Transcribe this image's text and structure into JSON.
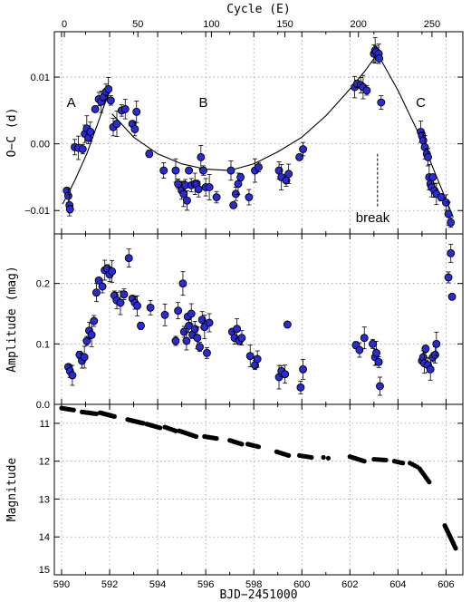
{
  "chart_data": [
    {
      "type": "scatter",
      "panel": "O-C",
      "ylabel": "O−C (d)",
      "x2label": "Cycle (E)",
      "xlim": [
        589.7,
        606.7
      ],
      "ylim": [
        -0.0135,
        0.0168
      ],
      "x2lim": [
        -6.8,
        271.0
      ],
      "xticks": [
        590,
        592,
        594,
        596,
        598,
        600,
        602,
        604,
        606
      ],
      "x2ticks": [
        0,
        50,
        100,
        150,
        200,
        250
      ],
      "yticks": [
        -0.01,
        0.0,
        0.01
      ],
      "ytick_labels": [
        "−0.01",
        "0.00",
        "0.01"
      ],
      "x2tick_labels": [
        "0",
        "50",
        "100",
        "150",
        "200",
        "250"
      ],
      "grid": true,
      "series": [
        {
          "x": [
            590.22,
            590.28,
            590.33,
            590.35,
            590.55,
            590.7,
            590.88,
            590.97,
            591.05,
            591.12,
            591.2,
            591.4,
            591.55,
            591.65,
            591.75,
            591.85,
            591.95,
            592.05,
            592.15,
            592.3,
            592.5,
            592.65,
            592.95,
            593.05,
            593.12,
            593.65,
            594.25,
            594.75,
            594.85,
            595.0,
            595.08,
            595.15,
            595.22,
            595.3,
            595.4,
            595.55,
            595.62,
            595.7,
            595.8,
            595.9,
            596.0,
            596.15,
            596.45,
            597.05,
            597.15,
            597.25,
            597.35,
            597.45,
            597.8,
            598.05,
            598.2,
            599.05,
            599.15,
            599.35,
            599.45,
            599.9,
            600.05,
            602.2,
            602.3,
            602.45,
            602.55,
            602.7,
            603.0,
            603.05,
            603.1,
            603.2,
            603.22,
            603.3,
            604.95,
            605.0,
            605.05,
            605.12,
            605.2,
            605.25,
            605.3,
            605.35,
            605.4,
            605.45,
            605.52,
            605.6,
            605.8,
            606.0,
            606.1,
            606.2
          ],
          "y": [
            -0.007,
            -0.0078,
            -0.0092,
            -0.0098,
            -0.0005,
            -0.0006,
            -0.0008,
            0.0015,
            0.0023,
            0.0009,
            0.0018,
            0.0052,
            0.0067,
            0.0063,
            0.007,
            0.0078,
            0.0082,
            0.0065,
            0.0025,
            0.003,
            0.005,
            0.0052,
            0.003,
            0.0022,
            0.0048,
            -0.0015,
            -0.004,
            -0.004,
            -0.006,
            -0.007,
            -0.0075,
            -0.0062,
            -0.0085,
            -0.004,
            -0.0062,
            -0.006,
            -0.006,
            -0.0068,
            -0.002,
            -0.004,
            -0.0065,
            -0.0065,
            -0.008,
            -0.004,
            -0.0092,
            -0.0075,
            -0.006,
            -0.005,
            -0.008,
            -0.004,
            -0.0035,
            -0.004,
            -0.005,
            -0.0055,
            -0.0045,
            -0.002,
            -0.0008,
            0.0085,
            0.009,
            0.0088,
            0.0085,
            0.008,
            0.0135,
            0.014,
            0.0138,
            0.0135,
            0.0128,
            0.0062,
            0.0018,
            0.0012,
            0.0005,
            -0.0005,
            -0.0015,
            -0.002,
            -0.005,
            -0.006,
            -0.0065,
            -0.005,
            -0.007,
            -0.0075,
            -0.008,
            -0.0088,
            -0.0105,
            -0.0118
          ]
        }
      ],
      "fit_segments": [
        {
          "x": [
            590.05,
            590.55,
            591.05,
            591.55,
            592.05
          ],
          "y": [
            -0.009,
            -0.0055,
            -0.0015,
            0.0035,
            0.0085
          ]
        },
        {
          "x": [
            592.1,
            593.0,
            594.0,
            595.0,
            596.0,
            597.0,
            598.0,
            599.0,
            600.0,
            601.0,
            602.0,
            602.6,
            603.15
          ],
          "y": [
            0.0045,
            0.001,
            -0.0015,
            -0.003,
            -0.0038,
            -0.004,
            -0.003,
            -0.0012,
            0.001,
            0.0042,
            0.0082,
            0.0108,
            0.0135
          ]
        },
        {
          "x": [
            603.15,
            604.0,
            605.0,
            605.5,
            606.3
          ],
          "y": [
            0.0135,
            0.008,
            0.0005,
            -0.004,
            -0.011
          ]
        }
      ],
      "annotations": [
        {
          "text": "A",
          "x": 590.4,
          "y": 0.0055
        },
        {
          "text": "B",
          "x": 595.9,
          "y": 0.0055
        },
        {
          "text": "C",
          "x": 604.95,
          "y": 0.0055
        },
        {
          "text": "break",
          "x": 602.95,
          "y": -0.0117
        }
      ],
      "break_marker": {
        "x": 603.15,
        "y_from": -0.0015,
        "y_to": -0.0095
      }
    },
    {
      "type": "scatter",
      "panel": "Amplitude",
      "ylabel": "Amplitude (mag)",
      "xlim": [
        589.7,
        606.7
      ],
      "ylim": [
        0.0,
        0.282
      ],
      "xticks": [
        590,
        592,
        594,
        596,
        598,
        600,
        602,
        604,
        606
      ],
      "yticks": [
        0.0,
        0.1,
        0.2
      ],
      "ytick_labels": [
        "0.0",
        "0.1",
        "0.2"
      ],
      "grid": true,
      "series": [
        {
          "x": [
            590.28,
            590.35,
            590.45,
            590.75,
            590.85,
            590.95,
            591.05,
            591.15,
            591.25,
            591.35,
            591.45,
            591.55,
            591.7,
            591.8,
            591.9,
            592.0,
            592.1,
            592.2,
            592.3,
            592.45,
            592.6,
            592.8,
            592.95,
            593.05,
            593.15,
            593.3,
            593.7,
            594.3,
            594.75,
            594.85,
            595.05,
            595.1,
            595.2,
            595.25,
            595.3,
            595.4,
            595.45,
            595.55,
            595.65,
            595.75,
            595.85,
            595.95,
            596.05,
            596.15,
            597.1,
            597.2,
            597.3,
            597.4,
            597.5,
            597.85,
            598.05,
            598.15,
            599.05,
            599.15,
            599.3,
            599.4,
            599.95,
            600.05,
            602.25,
            602.4,
            602.6,
            602.95,
            603.05,
            603.1,
            603.2,
            603.25,
            605.0,
            605.05,
            605.1,
            605.15,
            605.25,
            605.35,
            605.45,
            605.55,
            605.6,
            606.1,
            606.2,
            606.25
          ],
          "y": [
            0.062,
            0.055,
            0.048,
            0.082,
            0.072,
            0.078,
            0.105,
            0.122,
            0.115,
            0.138,
            0.185,
            0.205,
            0.195,
            0.222,
            0.225,
            0.215,
            0.22,
            0.18,
            0.172,
            0.168,
            0.182,
            0.242,
            0.175,
            0.168,
            0.163,
            0.13,
            0.16,
            0.148,
            0.105,
            0.155,
            0.2,
            0.12,
            0.105,
            0.145,
            0.13,
            0.15,
            0.115,
            0.125,
            0.11,
            0.095,
            0.14,
            0.128,
            0.085,
            0.135,
            0.12,
            0.11,
            0.125,
            0.105,
            0.11,
            0.08,
            0.065,
            0.075,
            0.045,
            0.055,
            0.05,
            0.132,
            0.028,
            0.058,
            0.098,
            0.09,
            0.11,
            0.1,
            0.078,
            0.085,
            0.07,
            0.03,
            0.072,
            0.078,
            0.068,
            0.092,
            0.065,
            0.058,
            0.078,
            0.082,
            0.1,
            0.21,
            0.25,
            0.178
          ]
        }
      ]
    },
    {
      "type": "scatter",
      "panel": "Magnitude",
      "ylabel": "Magnitude",
      "xlabel": "BJD−2451000",
      "xlim": [
        589.7,
        606.7
      ],
      "ylim": [
        15.0,
        10.5
      ],
      "xticks": [
        590,
        592,
        594,
        596,
        598,
        600,
        602,
        604,
        606
      ],
      "yticks": [
        11,
        12,
        13,
        14,
        15
      ],
      "ytick_labels": [
        "11",
        "12",
        "13",
        "14",
        "15"
      ],
      "grid": true,
      "segments": [
        {
          "x0": 590.0,
          "x1": 590.5,
          "y0": 10.6,
          "y1": 10.65,
          "n": 8
        },
        {
          "x0": 590.85,
          "x1": 591.45,
          "y0": 10.7,
          "y1": 10.75,
          "n": 10
        },
        {
          "x0": 591.6,
          "x1": 592.2,
          "y0": 10.72,
          "y1": 10.82,
          "n": 14
        },
        {
          "x0": 592.75,
          "x1": 593.4,
          "y0": 10.9,
          "y1": 11.0,
          "n": 12
        },
        {
          "x0": 593.55,
          "x1": 594.1,
          "y0": 11.02,
          "y1": 11.12,
          "n": 10
        },
        {
          "x0": 594.3,
          "x1": 594.75,
          "y0": 11.1,
          "y1": 11.2,
          "n": 6
        },
        {
          "x0": 594.9,
          "x1": 595.6,
          "y0": 11.2,
          "y1": 11.35,
          "n": 12
        },
        {
          "x0": 595.95,
          "x1": 596.45,
          "y0": 11.35,
          "y1": 11.4,
          "n": 8
        },
        {
          "x0": 597.0,
          "x1": 597.5,
          "y0": 11.45,
          "y1": 11.55,
          "n": 8
        },
        {
          "x0": 597.75,
          "x1": 598.2,
          "y0": 11.55,
          "y1": 11.62,
          "n": 8
        },
        {
          "x0": 598.95,
          "x1": 599.45,
          "y0": 11.75,
          "y1": 11.85,
          "n": 8
        },
        {
          "x0": 599.9,
          "x1": 600.4,
          "y0": 11.85,
          "y1": 11.9,
          "n": 6
        },
        {
          "x0": 600.9,
          "x1": 601.1,
          "y0": 11.9,
          "y1": 11.92,
          "n": 2
        },
        {
          "x0": 602.0,
          "x1": 602.6,
          "y0": 11.88,
          "y1": 12.0,
          "n": 10
        },
        {
          "x0": 603.0,
          "x1": 603.5,
          "y0": 11.95,
          "y1": 11.97,
          "n": 8
        },
        {
          "x0": 603.85,
          "x1": 604.2,
          "y0": 12.0,
          "y1": 12.05,
          "n": 6
        },
        {
          "x0": 604.5,
          "x1": 604.8,
          "y0": 12.05,
          "y1": 12.15,
          "n": 4
        },
        {
          "x0": 604.9,
          "x1": 605.3,
          "y0": 12.2,
          "y1": 12.55,
          "n": 8
        },
        {
          "x0": 605.95,
          "x1": 606.4,
          "y0": 13.7,
          "y1": 14.3,
          "n": 16
        }
      ]
    }
  ],
  "colors": {
    "marker_fill": "#2a2ad6",
    "marker_edge": "#000000",
    "grid": "#999999",
    "phot_dot": "#000000"
  }
}
